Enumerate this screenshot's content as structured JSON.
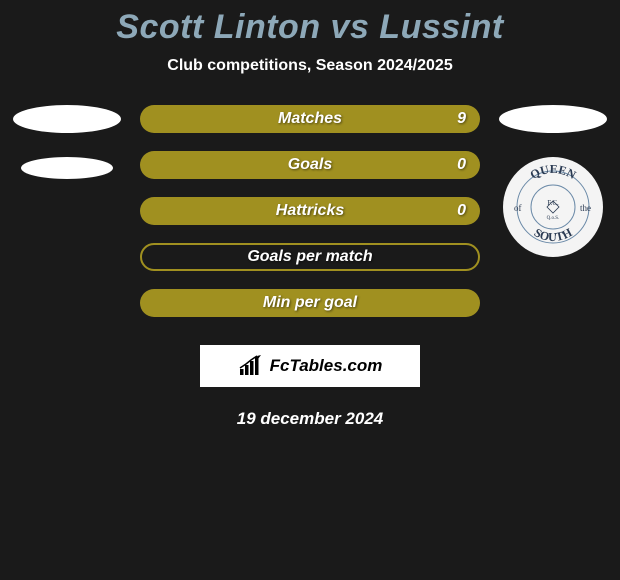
{
  "title": {
    "text": "Scott Linton vs Lussint",
    "color": "#8da8b8",
    "fontsize": 34
  },
  "subtitle": {
    "text": "Club competitions, Season 2024/2025",
    "fontsize": 16
  },
  "left_side": {
    "ellipse1": {
      "w": 108,
      "h": 28
    },
    "ellipse2": {
      "w": 92,
      "h": 22
    }
  },
  "right_side": {
    "ellipse1": {
      "w": 108,
      "h": 28
    },
    "club_name": "Queen of the South",
    "badge": {
      "outer_text_top": "QUEEN",
      "outer_text_bottom": "SOUTH",
      "outer_text_left": "of",
      "outer_text_right": "the",
      "ring_color": "#6b8aa8",
      "inner_bg": "#ffffff"
    }
  },
  "bars": {
    "fill_color": "#a09020",
    "label_fontsize": 16,
    "label_color": "#ffffff",
    "height": 28,
    "radius": 14,
    "items": [
      {
        "label": "Matches",
        "value_right": "9",
        "style": "filled"
      },
      {
        "label": "Goals",
        "value_right": "0",
        "style": "filled"
      },
      {
        "label": "Hattricks",
        "value_right": "0",
        "style": "filled"
      },
      {
        "label": "Goals per match",
        "value_right": "",
        "style": "outline"
      },
      {
        "label": "Min per goal",
        "value_right": "",
        "style": "filled"
      }
    ]
  },
  "brand": {
    "text": "FcTables.com",
    "fontsize": 17
  },
  "date": {
    "text": "19 december 2024",
    "fontsize": 17
  },
  "background_color": "#1a1a1a"
}
